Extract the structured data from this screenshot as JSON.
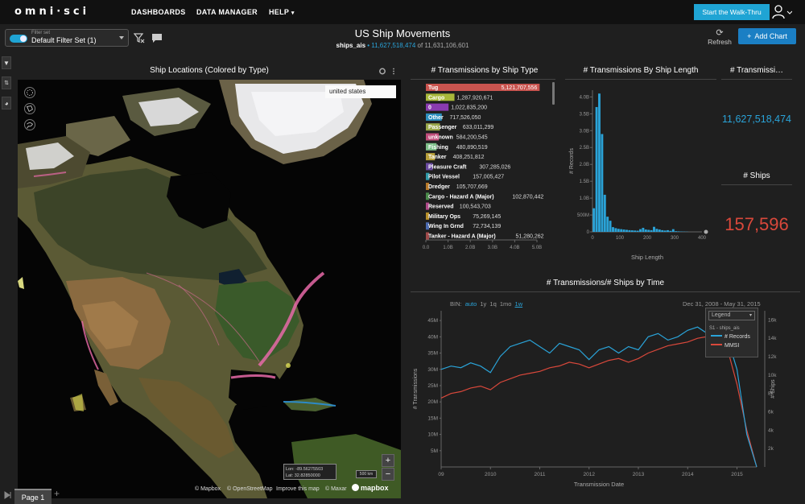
{
  "nav": {
    "logo": "omni·sci",
    "dashboards": "DASHBOARDS",
    "data_manager": "DATA MANAGER",
    "help": "HELP",
    "walkthru": "Start the Walk-Thru"
  },
  "filter": {
    "label": "Filter set",
    "value": "Default Filter Set (1)"
  },
  "dashboard": {
    "title": "US Ship Movements",
    "table": "ships_ais",
    "count": "11,627,518,474",
    "of": "of 11,631,106,601",
    "refresh": "Refresh",
    "add_chart": "Add Chart"
  },
  "map": {
    "title": "Ship Locations (Colored by Type)",
    "search_value": "united states",
    "lon": "Lon: -89.56275503",
    "lat": "Lat: 32.82850000",
    "scale": "500 km",
    "attrib_mapbox": "© Mapbox",
    "attrib_osm": "© OpenStreetMap",
    "attrib_improve": "Improve this map",
    "attrib_maxar": "© Maxar",
    "logo": "mapbox",
    "zoom_in": "+",
    "zoom_out": "−"
  },
  "ship_type_chart_title": "# Transmissions by Ship Type",
  "ship_length_chart_title": "# Transmissions By Ship Length",
  "kpi1": {
    "title": "# Transmissi…",
    "value": "11,627,518,474",
    "color": "#2aa3d8"
  },
  "kpi2": {
    "title": "# Ships",
    "value": "157,596",
    "color": "#d9483b"
  },
  "time_chart": {
    "title": "# Transmissions/# Ships by Time",
    "bin_label": "BIN:",
    "bins": [
      "auto",
      "1y",
      "1q",
      "1mo",
      "1w"
    ],
    "date_range": "Dec 31, 2008 - May 31, 2015",
    "legend_title": "Legend",
    "legend_group": "S1 - ships_ais",
    "xlabel": "Transmission Date",
    "ylabel_left": "# Transmissions",
    "ylabel_right": "# Ships"
  },
  "page_tab": "Page 1",
  "chart_data": [
    {
      "type": "bar",
      "title": "# Transmissions by Ship Type",
      "orientation": "horizontal",
      "categories": [
        "Tug",
        "Cargo",
        "0",
        "Other",
        "Passenger",
        "unknown",
        "Fishing",
        "Tanker",
        "Pleasure Craft",
        "Pilot Vessel",
        "Dredger",
        "Cargo - Hazard A (Major)",
        "Reserved",
        "Military Ops",
        "Wing In Grnd",
        "Tanker - Hazard A (Major)"
      ],
      "values": [
        5121707556,
        1287920671,
        1022835200,
        717526050,
        633011299,
        584200545,
        480890519,
        408251812,
        307285026,
        157005427,
        105707669,
        102870442,
        100543703,
        75269145,
        72734139,
        51280262
      ],
      "value_labels": [
        "5,121,707,556",
        "1,287,920,671",
        "1,022,835,200",
        "717,526,050",
        "633,011,299",
        "584,200,545",
        "480,890,519",
        "408,251,812",
        "307,285,026",
        "157,005,427",
        "105,707,669",
        "102,870,442",
        "100,543,703",
        "75,269,145",
        "72,734,139",
        "51,280,262"
      ],
      "colors": [
        "#c9544f",
        "#a8b83a",
        "#8a3bb0",
        "#2c8fbf",
        "#9aa84a",
        "#c04d7a",
        "#7fc08a",
        "#b8a03a",
        "#6a4aa0",
        "#2f9aa8",
        "#b87a2a",
        "#4a8a4a",
        "#b04a8a",
        "#b8902a",
        "#4a6ab0",
        "#a04a4a"
      ],
      "xticks": [
        "0.0",
        "1.0B",
        "2.0B",
        "3.0B",
        "4.0B",
        "5.0B"
      ],
      "xlim": [
        0,
        5000000000
      ]
    },
    {
      "type": "bar",
      "title": "# Transmissions By Ship Length",
      "xlabel": "Ship Length",
      "ylabel": "# Records",
      "x": [
        5,
        15,
        25,
        35,
        45,
        55,
        65,
        75,
        85,
        95,
        105,
        115,
        125,
        135,
        145,
        155,
        165,
        175,
        185,
        195,
        205,
        215,
        225,
        235,
        245,
        255,
        265,
        275,
        285,
        295,
        305,
        315,
        325,
        335,
        345
      ],
      "values": [
        700000000,
        3700000000,
        4100000000,
        2900000000,
        1100000000,
        450000000,
        330000000,
        140000000,
        110000000,
        90000000,
        80000000,
        70000000,
        60000000,
        50000000,
        45000000,
        40000000,
        35000000,
        80000000,
        120000000,
        70000000,
        60000000,
        50000000,
        150000000,
        90000000,
        70000000,
        50000000,
        40000000,
        50000000,
        30000000,
        80000000,
        20000000,
        15000000,
        10000000,
        8000000,
        5000000
      ],
      "yticks": [
        "0",
        "500M",
        "1.0B",
        "1.5B",
        "2.0B",
        "2.5B",
        "3.0B",
        "3.5B",
        "4.0B"
      ],
      "xticks": [
        "0",
        "100",
        "200",
        "300",
        "400"
      ],
      "xlim": [
        0,
        400
      ],
      "ylim": [
        0,
        4200000000
      ],
      "color": "#2aa3d8"
    },
    {
      "type": "line",
      "title": "# Transmissions/# Ships by Time",
      "xlabel": "Transmission Date",
      "ylabel": "# Transmissions",
      "y2label": "# Ships",
      "xticks": [
        "09",
        "2010",
        "2011",
        "2012",
        "2013",
        "2014",
        "2015"
      ],
      "yticks_left": [
        "5M",
        "10M",
        "15M",
        "20M",
        "25M",
        "30M",
        "35M",
        "40M",
        "45M"
      ],
      "yticks_right": [
        "2k",
        "4k",
        "6k",
        "8k",
        "10k",
        "12k",
        "14k",
        "16k"
      ],
      "ylim": [
        0,
        48000000
      ],
      "y2lim": [
        0,
        17000
      ],
      "series": [
        {
          "name": "# Records",
          "color": "#2aa3d8",
          "x": [
            2009.0,
            2009.2,
            2009.4,
            2009.6,
            2009.8,
            2010.0,
            2010.2,
            2010.4,
            2010.6,
            2010.8,
            2011.0,
            2011.2,
            2011.4,
            2011.6,
            2011.8,
            2012.0,
            2012.2,
            2012.4,
            2012.6,
            2012.8,
            2013.0,
            2013.2,
            2013.4,
            2013.6,
            2013.8,
            2014.0,
            2014.2,
            2014.4,
            2014.6,
            2014.8,
            2015.0,
            2015.2,
            2015.4
          ],
          "values": [
            30000000,
            31000000,
            30500000,
            32000000,
            31000000,
            29000000,
            34000000,
            37000000,
            38000000,
            39000000,
            37000000,
            35000000,
            38000000,
            37000000,
            36000000,
            33000000,
            36000000,
            37000000,
            35000000,
            37000000,
            36000000,
            40000000,
            41000000,
            39000000,
            40000000,
            42000000,
            43000000,
            41000000,
            44000000,
            40000000,
            30000000,
            10000000,
            0
          ]
        },
        {
          "name": "MMSI",
          "color": "#d9483b",
          "x": [
            2009.0,
            2009.2,
            2009.4,
            2009.6,
            2009.8,
            2010.0,
            2010.2,
            2010.4,
            2010.6,
            2010.8,
            2011.0,
            2011.2,
            2011.4,
            2011.6,
            2011.8,
            2012.0,
            2012.2,
            2012.4,
            2012.6,
            2012.8,
            2013.0,
            2013.2,
            2013.4,
            2013.6,
            2013.8,
            2014.0,
            2014.2,
            2014.4,
            2014.6,
            2014.8,
            2015.0,
            2015.2,
            2015.4
          ],
          "values": [
            7500,
            8000,
            8200,
            8600,
            8800,
            8400,
            9200,
            9600,
            10000,
            10200,
            10400,
            10800,
            11000,
            11400,
            11200,
            10800,
            11200,
            11600,
            11800,
            11400,
            11800,
            12400,
            12800,
            13200,
            13400,
            13600,
            14000,
            14200,
            14400,
            13000,
            9000,
            4000,
            0
          ]
        }
      ]
    }
  ]
}
